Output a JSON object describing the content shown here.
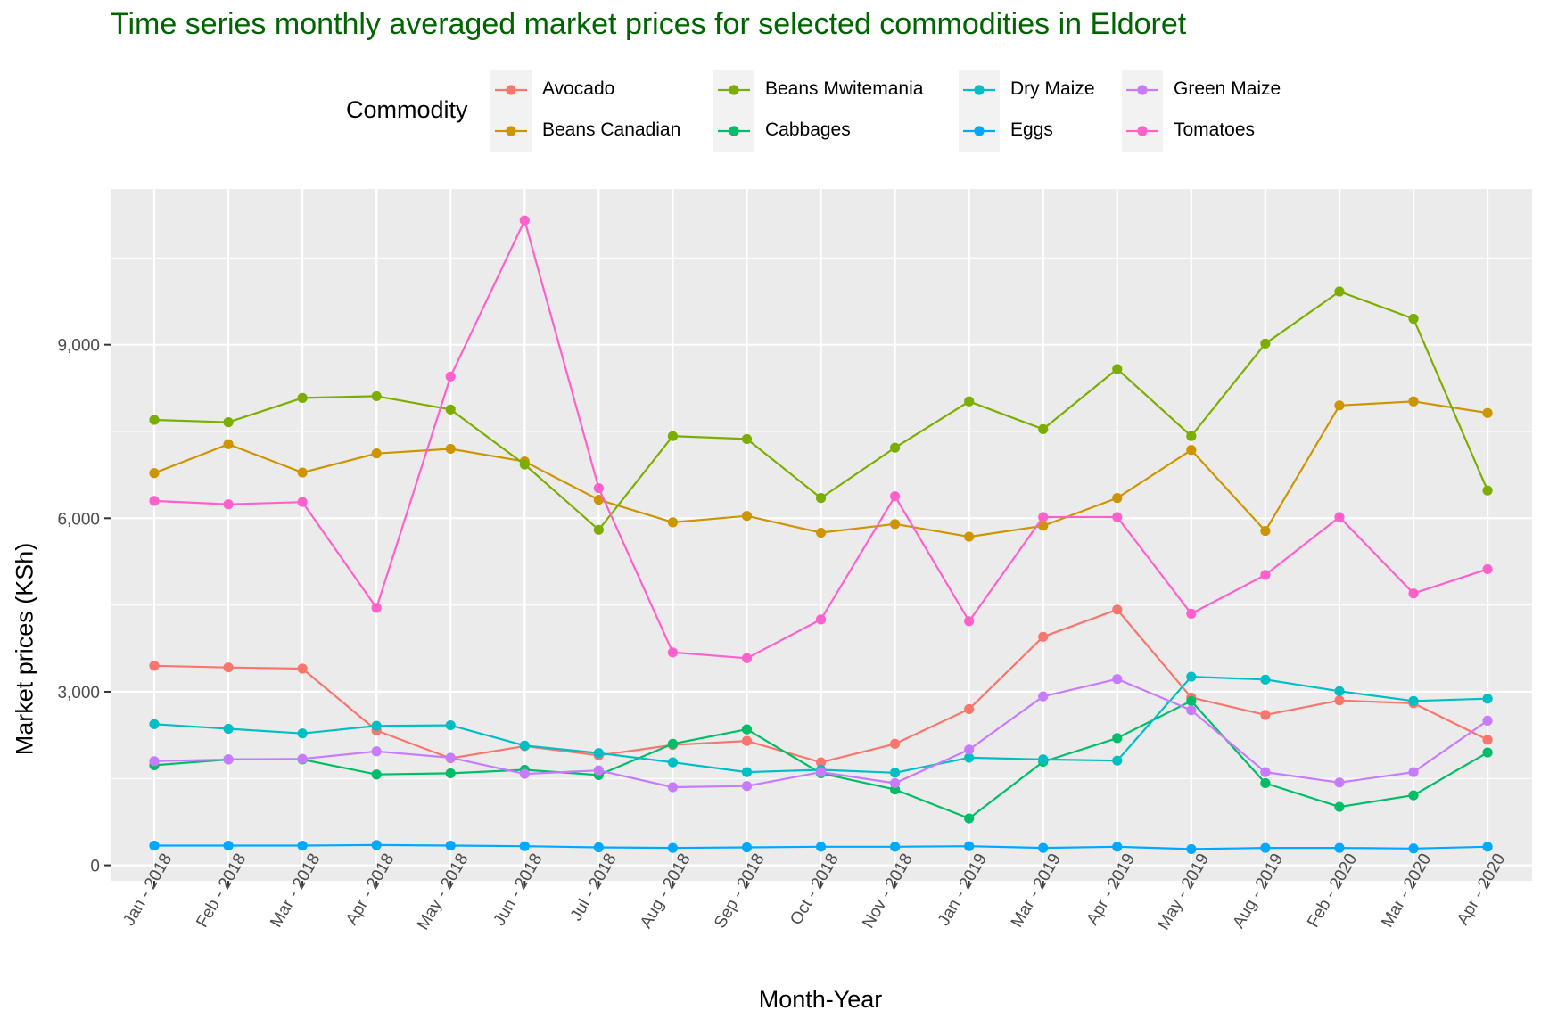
{
  "chart_data": {
    "type": "line",
    "title": "Time series monthly averaged market prices for selected commodities in Eldoret",
    "xlabel": "Month-Year",
    "ylabel": "Market prices (KSh)",
    "legend_title": "Commodity",
    "legend_placement": "top",
    "grid": true,
    "ylim": [
      -550,
      11700
    ],
    "yticks": [
      0,
      3000,
      6000,
      9000
    ],
    "ytick_labels": [
      "0",
      "3,000",
      "6,000",
      "9,000"
    ],
    "categories": [
      "Jan - 2018",
      "Feb - 2018",
      "Mar - 2018",
      "Apr - 2018",
      "May - 2018",
      "Jun - 2018",
      "Jul - 2018",
      "Aug - 2018",
      "Sep - 2018",
      "Oct - 2018",
      "Nov - 2018",
      "Jan - 2019",
      "Mar - 2019",
      "Apr - 2019",
      "May - 2019",
      "Aug - 2019",
      "Feb - 2020",
      "Mar - 2020",
      "Apr - 2020"
    ],
    "series": [
      {
        "name": "Avocado",
        "color": "#F8766D",
        "values": [
          3450,
          3420,
          3400,
          2330,
          1850,
          2060,
          1900,
          2080,
          2150,
          1780,
          2100,
          2700,
          3950,
          4420,
          2900,
          2600,
          2850,
          2800,
          2170
        ]
      },
      {
        "name": "Beans Canadian",
        "color": "#CD9600",
        "values": [
          6780,
          7280,
          6790,
          7120,
          7200,
          6980,
          6320,
          5930,
          6040,
          5750,
          5900,
          5680,
          5870,
          6350,
          7180,
          5780,
          7950,
          8020,
          7820
        ]
      },
      {
        "name": "Beans Mwitemania",
        "color": "#7CAE00",
        "values": [
          7700,
          7660,
          8080,
          8110,
          7880,
          6930,
          5800,
          7420,
          7370,
          6350,
          7220,
          8020,
          7540,
          8580,
          7420,
          9020,
          9920,
          9450,
          6480
        ]
      },
      {
        "name": "Cabbages",
        "color": "#00BE67",
        "values": [
          1730,
          1830,
          1830,
          1570,
          1590,
          1650,
          1560,
          2100,
          2350,
          1590,
          1310,
          810,
          1790,
          2200,
          2840,
          1420,
          1010,
          1210,
          1950
        ]
      },
      {
        "name": "Dry Maize",
        "color": "#00BFC4",
        "values": [
          2440,
          2360,
          2280,
          2410,
          2420,
          2070,
          1940,
          1780,
          1610,
          1650,
          1600,
          1860,
          1830,
          1810,
          3260,
          3210,
          3010,
          2840,
          2880
        ]
      },
      {
        "name": "Eggs",
        "color": "#00A9FF",
        "values": [
          340,
          340,
          340,
          350,
          340,
          330,
          310,
          300,
          310,
          320,
          320,
          330,
          300,
          320,
          280,
          300,
          300,
          290,
          320
        ]
      },
      {
        "name": "Green Maize",
        "color": "#C77CFF",
        "values": [
          1800,
          1830,
          1840,
          1970,
          1860,
          1580,
          1640,
          1350,
          1370,
          1610,
          1420,
          2000,
          2920,
          3220,
          2680,
          1610,
          1430,
          1610,
          2500
        ]
      },
      {
        "name": "Tomatoes",
        "color": "#FF61CC",
        "values": [
          6300,
          6240,
          6280,
          4450,
          8450,
          11150,
          6520,
          3680,
          3580,
          4250,
          6380,
          4220,
          6020,
          6020,
          4350,
          5020,
          6020,
          4700,
          5120
        ]
      }
    ]
  }
}
